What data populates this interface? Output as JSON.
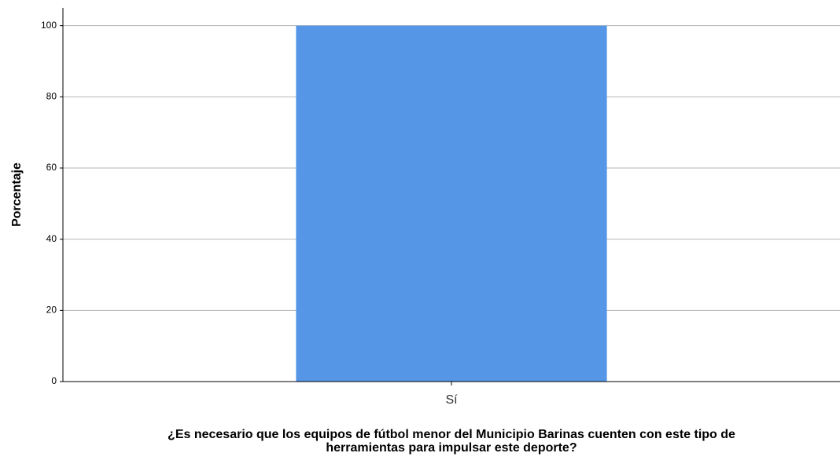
{
  "chart_data": {
    "type": "bar",
    "ylabel": "Porcentaje",
    "xlabel": [
      "¿Es necesario que los equipos de fútbol menor del Municipio Barinas cuenten con este tipo de",
      "herramientas para impulsar este deporte?"
    ],
    "categories": [
      "Sí"
    ],
    "values": [
      100
    ],
    "color": "#5596e6",
    "ylim": [
      0,
      105
    ],
    "yticks": [
      0,
      20,
      40,
      60,
      80,
      100
    ],
    "grid": true
  }
}
